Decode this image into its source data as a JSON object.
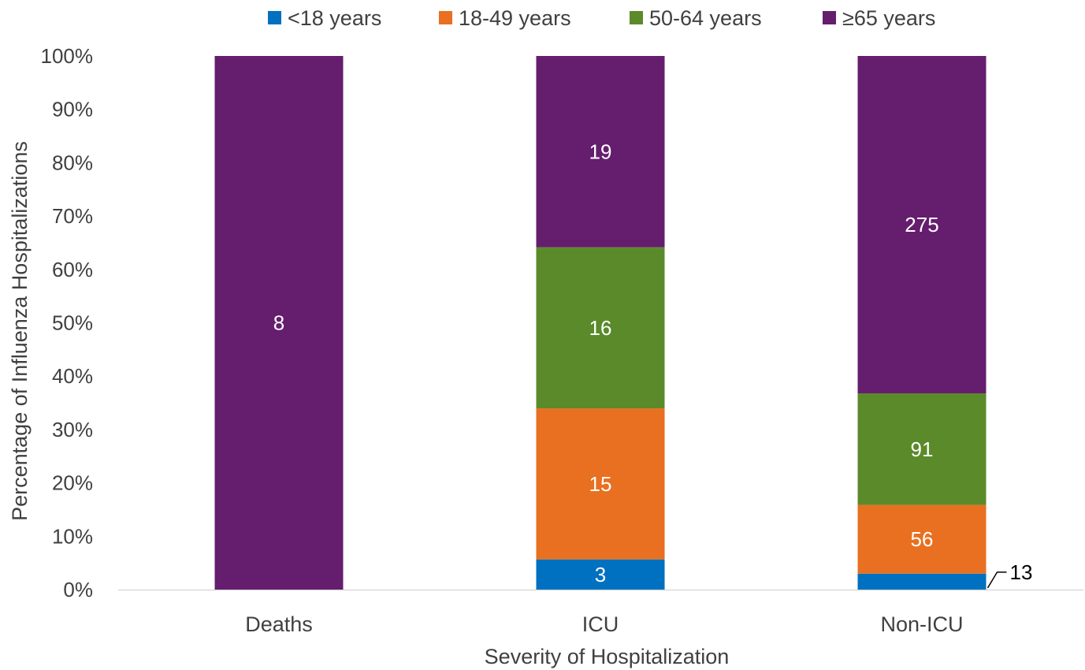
{
  "chart_data": {
    "type": "bar",
    "stacked": "percent",
    "title": "",
    "xlabel": "Severity of Hospitalization",
    "ylabel": "Percentage of Influenza Hospitalizations",
    "ylim": [
      0,
      100
    ],
    "yticks": [
      "0%",
      "10%",
      "20%",
      "30%",
      "40%",
      "50%",
      "60%",
      "70%",
      "80%",
      "90%",
      "100%"
    ],
    "categories": [
      "Deaths",
      "ICU",
      "Non-ICU"
    ],
    "series": [
      {
        "name": "<18 years",
        "color": "#0070C0",
        "values": [
          0,
          3,
          13
        ]
      },
      {
        "name": "18-49 years",
        "color": "#E87020",
        "values": [
          0,
          15,
          56
        ]
      },
      {
        "name": "50-64 years",
        "color": "#5B8A2A",
        "values": [
          0,
          16,
          91
        ]
      },
      {
        "name": "≥65 years",
        "color": "#651D6E",
        "values": [
          8,
          19,
          275
        ]
      }
    ],
    "legend_position": "top",
    "grid": false
  }
}
